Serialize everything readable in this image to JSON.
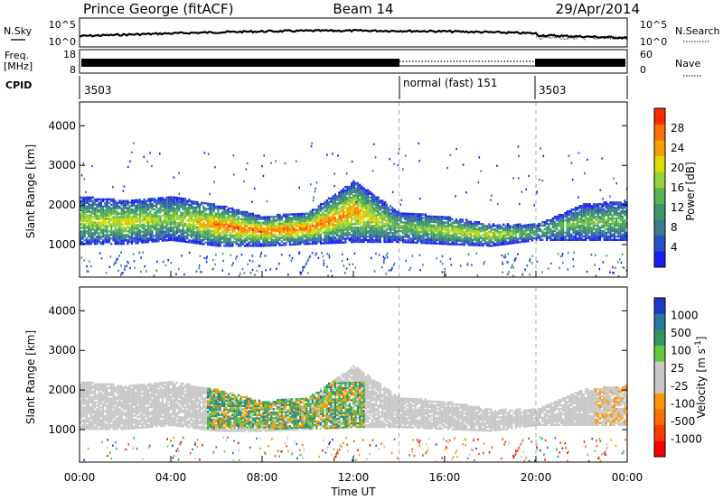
{
  "header": {
    "station": "Prince George (fitACF)",
    "beam": "Beam 14",
    "date": "29/Apr/2014"
  },
  "noise_panel": {
    "left_label": "N.Sky",
    "right_label": "N.Search",
    "left_ticks": [
      "10^5",
      "10^0"
    ],
    "right_ticks": [
      "10^5",
      "10^0"
    ]
  },
  "freq_panel": {
    "left_label_line1": "Freq.",
    "left_label_line2": "[MHz]",
    "right_label": "Nave",
    "left_ticks": [
      "18",
      "8"
    ],
    "right_ticks": [
      "60",
      "0"
    ]
  },
  "cpid_panel": {
    "label": "CPID",
    "segments": [
      {
        "start_hour": 0,
        "end_hour": 14,
        "text": "3503"
      },
      {
        "start_hour": 14,
        "end_hour": 20,
        "text": "normal (fast) 151"
      },
      {
        "start_hour": 20,
        "end_hour": 24,
        "text": "3503"
      }
    ]
  },
  "power_panel": {
    "ylabel": "Slant Range [km]",
    "yticks": [
      "1000",
      "2000",
      "3000",
      "4000"
    ],
    "colorbar_label": "Power [dB]",
    "colorbar_ticks": [
      "4",
      "8",
      "12",
      "16",
      "20",
      "24",
      "28"
    ],
    "colorbar_colors": [
      "#1a1aff",
      "#2850c8",
      "#3c7a8c",
      "#3c966e",
      "#5ab450",
      "#96d23c",
      "#dcdc00",
      "#f5a000",
      "#ff6e00",
      "#ff2800"
    ]
  },
  "velocity_panel": {
    "ylabel": "Slant Range [km]",
    "yticks": [
      "1000",
      "2000",
      "3000",
      "4000"
    ],
    "colorbar_label": "Velocity [m s",
    "colorbar_label_sup": "-1",
    "colorbar_label_end": "]",
    "colorbar_ticks": [
      "1000",
      "500",
      "100",
      "25",
      "-25",
      "-100",
      "-500",
      "-1000"
    ],
    "colorbar_colors": [
      "#1e3cc8",
      "#2878a0",
      "#329664",
      "#64c83c",
      "#c8c8c8",
      "#c8c8c8",
      "#ff9600",
      "#ff6e00",
      "#ff3c00",
      "#ff0000"
    ]
  },
  "xaxis": {
    "label": "Time UT",
    "ticks": [
      "00:00",
      "04:00",
      "08:00",
      "12:00",
      "16:00",
      "20:00",
      "00:00"
    ]
  },
  "chart_data": {
    "type": "heatmap",
    "title": "Prince George (fitACF)  Beam 14  29/Apr/2014",
    "xlabel": "Time UT",
    "ylabel": "Slant Range [km]",
    "xlim_hours": [
      0,
      24
    ],
    "ylim_km": [
      180,
      4600
    ],
    "mode_change_hours": [
      14,
      20
    ],
    "power_scatter_band": [
      {
        "hour": 0,
        "low_km": 1000,
        "high_km": 2200,
        "peak_db": 20
      },
      {
        "hour": 2,
        "low_km": 1000,
        "high_km": 2100,
        "peak_db": 22
      },
      {
        "hour": 4,
        "low_km": 1100,
        "high_km": 2200,
        "peak_db": 18
      },
      {
        "hour": 6,
        "low_km": 950,
        "high_km": 2000,
        "peak_db": 28
      },
      {
        "hour": 8,
        "low_km": 950,
        "high_km": 1700,
        "peak_db": 28
      },
      {
        "hour": 10,
        "low_km": 1000,
        "high_km": 1800,
        "peak_db": 28
      },
      {
        "hour": 12,
        "low_km": 1050,
        "high_km": 2600,
        "peak_db": 26
      },
      {
        "hour": 14,
        "low_km": 1050,
        "high_km": 1800,
        "peak_db": 16
      },
      {
        "hour": 16,
        "low_km": 1000,
        "high_km": 1700,
        "peak_db": 20
      },
      {
        "hour": 18,
        "low_km": 950,
        "high_km": 1500,
        "peak_db": 22
      },
      {
        "hour": 20,
        "low_km": 1100,
        "high_km": 1500,
        "peak_db": 14
      },
      {
        "hour": 22,
        "low_km": 1100,
        "high_km": 2000,
        "peak_db": 18
      },
      {
        "hour": 24,
        "low_km": 1100,
        "high_km": 2100,
        "peak_db": 16
      }
    ],
    "velocity_flow_region": {
      "start_hour": 5.5,
      "end_hour": 12.5,
      "low_km": 1000,
      "high_km": 2200,
      "velocity_range": [
        -100,
        500
      ]
    }
  }
}
